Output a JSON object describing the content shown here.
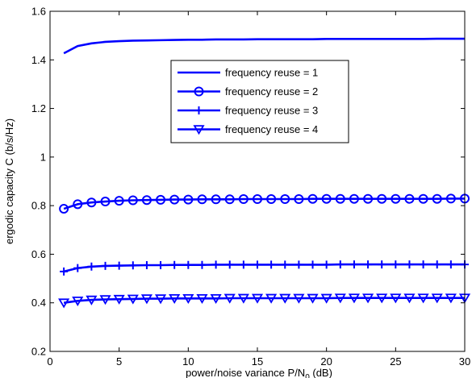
{
  "chart_data": {
    "type": "line",
    "title": "",
    "xlabel": "power/noise variance P/N",
    "xlabel_sub": "0",
    "xlabel_unit": " (dB)",
    "ylabel": "ergodic capacity C (b/s/Hz)",
    "xlim": [
      0,
      30
    ],
    "ylim": [
      0.2,
      1.6
    ],
    "xticks": [
      0,
      5,
      10,
      15,
      20,
      25,
      30
    ],
    "yticks": [
      0.2,
      0.4,
      0.6,
      0.8,
      1.0,
      1.2,
      1.4,
      1.6
    ],
    "xtick_labels": [
      "0",
      "5",
      "10",
      "15",
      "20",
      "25",
      "30"
    ],
    "ytick_labels": [
      "0.2",
      "0.4",
      "0.6",
      "0.8",
      "1",
      "1.2",
      "1.4",
      "1.6"
    ],
    "grid": false,
    "legend_position": "upper-center-right",
    "line_color": "#0000ff",
    "x": [
      1,
      2,
      3,
      4,
      5,
      6,
      7,
      8,
      9,
      10,
      11,
      12,
      13,
      14,
      15,
      16,
      17,
      18,
      19,
      20,
      21,
      22,
      23,
      24,
      25,
      26,
      27,
      28,
      29,
      30
    ],
    "series": [
      {
        "name": "frequency reuse = 1",
        "marker": "none",
        "values": [
          1.427,
          1.457,
          1.468,
          1.474,
          1.477,
          1.479,
          1.48,
          1.481,
          1.482,
          1.483,
          1.483,
          1.484,
          1.484,
          1.484,
          1.485,
          1.485,
          1.485,
          1.485,
          1.485,
          1.486,
          1.486,
          1.486,
          1.486,
          1.486,
          1.486,
          1.486,
          1.486,
          1.487,
          1.487,
          1.487
        ]
      },
      {
        "name": "frequency reuse = 2",
        "marker": "circle",
        "values": [
          0.787,
          0.806,
          0.813,
          0.817,
          0.82,
          0.822,
          0.823,
          0.824,
          0.825,
          0.825,
          0.826,
          0.826,
          0.826,
          0.827,
          0.827,
          0.827,
          0.827,
          0.827,
          0.828,
          0.828,
          0.828,
          0.828,
          0.828,
          0.828,
          0.828,
          0.828,
          0.828,
          0.828,
          0.829,
          0.829
        ]
      },
      {
        "name": "frequency reuse = 3",
        "marker": "plus",
        "values": [
          0.529,
          0.543,
          0.549,
          0.552,
          0.553,
          0.554,
          0.555,
          0.555,
          0.556,
          0.556,
          0.556,
          0.557,
          0.557,
          0.557,
          0.557,
          0.557,
          0.557,
          0.557,
          0.557,
          0.557,
          0.558,
          0.558,
          0.558,
          0.558,
          0.558,
          0.558,
          0.558,
          0.558,
          0.558,
          0.558
        ]
      },
      {
        "name": "frequency reuse = 4",
        "marker": "triangle-down",
        "values": [
          0.4,
          0.408,
          0.412,
          0.414,
          0.415,
          0.416,
          0.417,
          0.417,
          0.418,
          0.418,
          0.418,
          0.418,
          0.419,
          0.419,
          0.419,
          0.419,
          0.419,
          0.419,
          0.419,
          0.419,
          0.42,
          0.42,
          0.42,
          0.42,
          0.42,
          0.42,
          0.42,
          0.42,
          0.42,
          0.42
        ]
      }
    ]
  }
}
